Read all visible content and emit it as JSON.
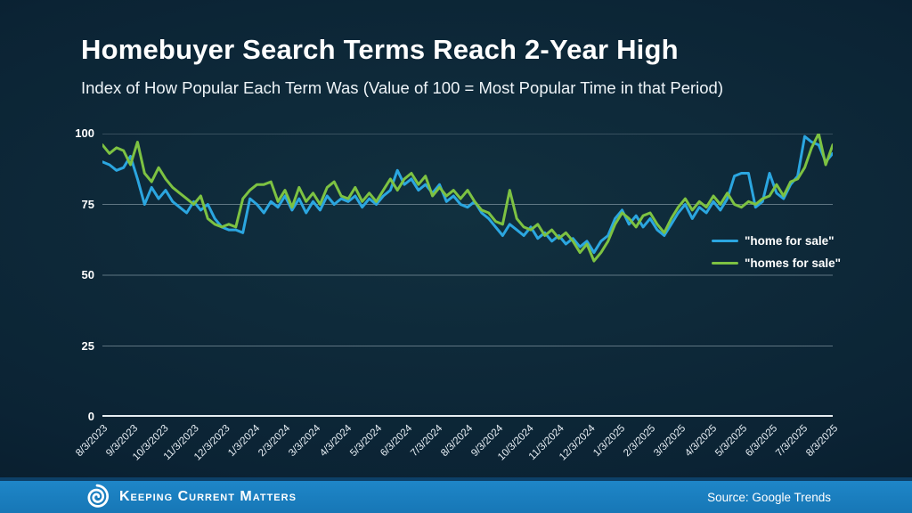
{
  "slide": {
    "title": "Homebuyer Search Terms Reach 2-Year High",
    "subtitle": "Index of How Popular Each Term Was (Value of 100 = Most Popular Time in that Period)"
  },
  "footer": {
    "brand": "Keeping Current Matters",
    "source": "Source: Google Trends",
    "bar_color": "#1a7dc0",
    "logo_icon": "kcm-swirl-icon"
  },
  "chart_data": {
    "type": "line",
    "title": "Homebuyer Search Terms Reach 2-Year High",
    "subtitle": "Index of How Popular Each Term Was (Value of 100 = Most Popular Time in that Period)",
    "x_tick_labels": [
      "8/3/2023",
      "9/3/2023",
      "10/3/2023",
      "11/3/2023",
      "12/3/2023",
      "1/3/2024",
      "2/3/2024",
      "3/3/2024",
      "4/3/2024",
      "5/3/2024",
      "6/3/2024",
      "7/3/2024",
      "8/3/2024",
      "9/3/2024",
      "10/3/2024",
      "11/3/2024",
      "12/3/2024",
      "1/3/2025",
      "2/3/2025",
      "3/3/2025",
      "4/3/2025",
      "5/3/2025",
      "6/3/2025",
      "7/3/2025",
      "8/3/2025"
    ],
    "x_unit": "weekly Google Trends index, Aug 2023 - Aug 2025",
    "ylim": [
      0,
      100
    ],
    "yticks": [
      0,
      25,
      50,
      75,
      100
    ],
    "grid": "horizontal",
    "gridline_color": "rgba(175,193,204,0.5)",
    "axis_color": "#e6edf2",
    "legend_position": "inside-right-middle",
    "series": [
      {
        "name": "\"home for sale\"",
        "color": "#2ba6e0",
        "values": [
          90,
          89,
          87,
          88,
          92,
          84,
          75,
          81,
          77,
          80,
          76,
          74,
          72,
          76,
          73,
          75,
          70,
          67,
          66,
          66,
          65,
          77,
          75,
          72,
          76,
          74,
          78,
          73,
          77,
          72,
          76,
          73,
          78,
          75,
          77,
          76,
          78,
          74,
          77,
          75,
          78,
          80,
          87,
          82,
          84,
          80,
          82,
          79,
          82,
          76,
          78,
          75,
          74,
          76,
          72,
          70,
          67,
          64,
          68,
          66,
          64,
          67,
          63,
          65,
          62,
          64,
          61,
          63,
          60,
          62,
          58,
          62,
          64,
          70,
          73,
          68,
          71,
          67,
          70,
          66,
          64,
          68,
          72,
          75,
          70,
          74,
          72,
          76,
          73,
          77,
          85,
          86,
          86,
          74,
          76,
          86,
          79,
          77,
          82,
          85,
          99,
          97,
          96,
          90,
          93
        ]
      },
      {
        "name": "\"homes for sale\"",
        "color": "#7dc242",
        "values": [
          96,
          93,
          95,
          94,
          89,
          97,
          86,
          83,
          88,
          84,
          81,
          79,
          77,
          75,
          78,
          70,
          68,
          67,
          68,
          67,
          77,
          80,
          82,
          82,
          83,
          76,
          80,
          74,
          81,
          76,
          79,
          75,
          81,
          83,
          78,
          77,
          81,
          76,
          79,
          76,
          80,
          84,
          80,
          84,
          86,
          82,
          85,
          78,
          81,
          78,
          80,
          77,
          80,
          76,
          73,
          72,
          69,
          68,
          80,
          70,
          67,
          66,
          68,
          64,
          66,
          63,
          65,
          62,
          58,
          61,
          55,
          58,
          62,
          68,
          72,
          70,
          67,
          71,
          72,
          68,
          65,
          70,
          74,
          77,
          73,
          76,
          74,
          78,
          75,
          79,
          75,
          74,
          76,
          75,
          77,
          78,
          82,
          78,
          83,
          84,
          88,
          95,
          100,
          89,
          96
        ]
      }
    ]
  }
}
